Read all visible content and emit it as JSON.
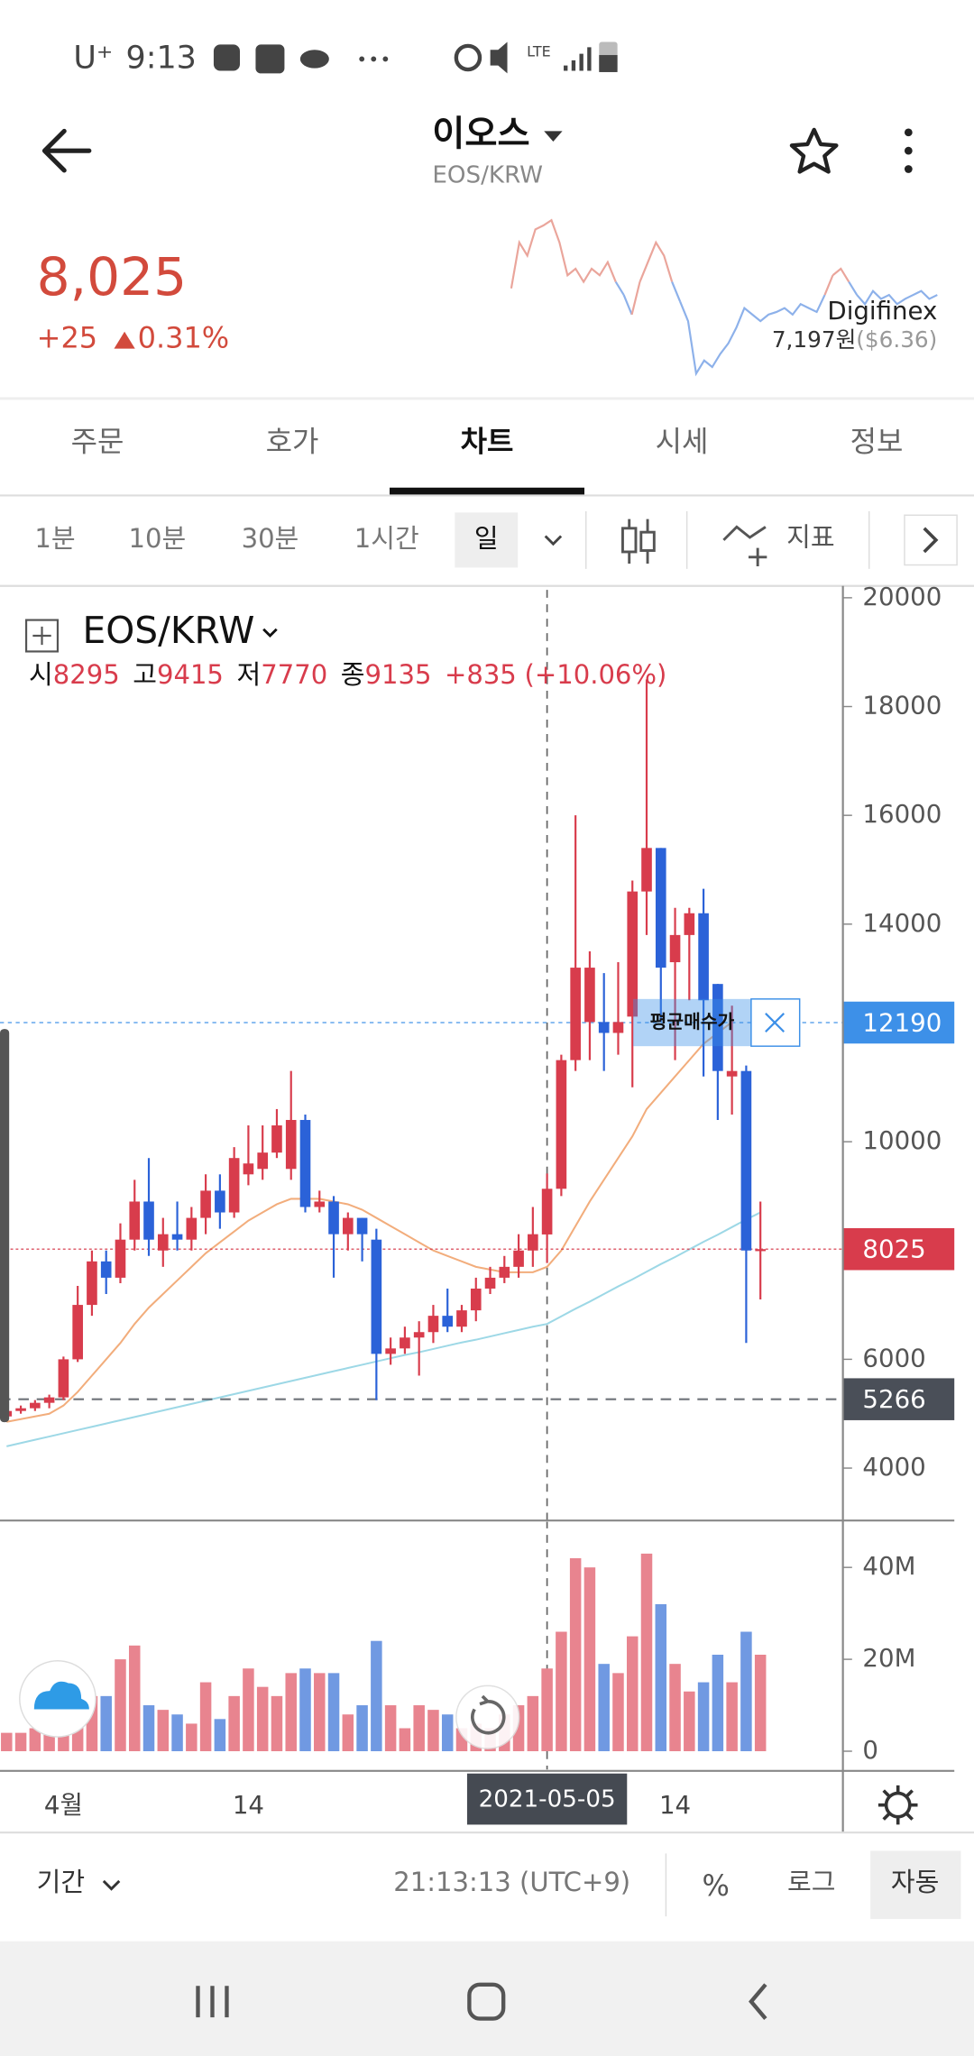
{
  "status_bar": {
    "carrier": "U⁺",
    "time": "9:13",
    "network": "LTE"
  },
  "header": {
    "title": "이오스",
    "subtitle": "EOS/KRW"
  },
  "ticker": {
    "price": "8,025",
    "change": "+25",
    "change_pct": "0.31%"
  },
  "exchange": {
    "name": "Digifinex",
    "price": "7,197원",
    "usd": "($6.36)"
  },
  "sparkline": {
    "values": [
      8050,
      8225,
      8175,
      8275,
      8290,
      8310,
      8225,
      8100,
      8125,
      8075,
      8125,
      8100,
      8150,
      8075,
      8025,
      7950,
      8075,
      8150,
      8225,
      8175,
      8075,
      8000,
      7925,
      7725,
      7775,
      7750,
      7800,
      7840,
      7900,
      7975,
      7950,
      7925,
      7950,
      7960,
      7975,
      7950,
      7990,
      7975,
      7960,
      8025,
      8100,
      8125,
      8075,
      8025,
      7990,
      8040,
      8010,
      8025,
      7990,
      8010,
      8025,
      8040,
      8010,
      8025
    ],
    "ylim": [
      7700,
      8325
    ],
    "up_color": "#eaa59b",
    "down_color": "#8db1ea"
  },
  "tabs": [
    "주문",
    "호가",
    "차트",
    "시세",
    "정보"
  ],
  "active_tab": "차트",
  "intervals": [
    "1분",
    "10분",
    "30분",
    "1시간",
    "일"
  ],
  "active_interval": "일",
  "indicator": "지표",
  "chart_data": {
    "type": "candlestick",
    "title": "EOS/KRW",
    "categories": [
      null,
      null,
      null,
      null,
      "4월",
      null,
      null,
      null,
      null,
      null,
      null,
      null,
      null,
      null,
      null,
      null,
      null,
      "14",
      null,
      null,
      null,
      null,
      null,
      null,
      null,
      null,
      null,
      null,
      null,
      null,
      null,
      null,
      null,
      null,
      null,
      null,
      null,
      null,
      "2021-05-05",
      null,
      null,
      null,
      null,
      null,
      null,
      null,
      null,
      "14",
      null,
      null,
      null,
      null,
      null,
      null
    ],
    "crosshair": "2021-05-05",
    "open": [
      4950,
      5050,
      5100,
      5200,
      5300,
      6000,
      7000,
      7800,
      7500,
      8200,
      8900,
      8000,
      8300,
      8200,
      8600,
      9100,
      8700,
      9400,
      9500,
      9800,
      9500,
      10400,
      8800,
      8900,
      8300,
      8600,
      8200,
      6100,
      6200,
      6400,
      6500,
      6800,
      6600,
      6900,
      7300,
      7500,
      7700,
      8000,
      8295,
      9135,
      11500,
      12200,
      12200,
      12000,
      12300,
      14600,
      15400,
      13300,
      13800,
      14200,
      12900,
      11200,
      11300,
      8000
    ],
    "high": [
      5100,
      5150,
      5250,
      5350,
      6050,
      7350,
      8000,
      8000,
      8500,
      9300,
      9700,
      8600,
      8900,
      8800,
      9400,
      9400,
      9900,
      10300,
      10300,
      10600,
      11300,
      10500,
      9100,
      9000,
      8700,
      8600,
      8400,
      6400,
      6600,
      6700,
      7000,
      7300,
      7000,
      7500,
      7700,
      7900,
      8300,
      8800,
      9415,
      11600,
      16000,
      13500,
      13100,
      13300,
      14800,
      18500,
      15400,
      14300,
      14300,
      14650,
      12900,
      12500,
      11400,
      8900
    ],
    "low": [
      4900,
      5000,
      5050,
      5100,
      5250,
      5950,
      6800,
      7200,
      7400,
      8000,
      7900,
      7700,
      8000,
      8000,
      8300,
      8400,
      8600,
      9200,
      9300,
      9700,
      9300,
      8700,
      8700,
      7500,
      8000,
      7800,
      5250,
      5900,
      6100,
      5700,
      6300,
      6500,
      6500,
      6700,
      7200,
      7400,
      7500,
      7700,
      7770,
      9000,
      11300,
      11500,
      11300,
      11600,
      11000,
      13800,
      12200,
      11500,
      12600,
      11200,
      10400,
      10500,
      6300,
      7100
    ],
    "close": [
      5050,
      5100,
      5200,
      5300,
      6000,
      7000,
      7800,
      7500,
      8200,
      8900,
      8200,
      8300,
      8200,
      8600,
      9100,
      8700,
      9700,
      9600,
      9800,
      10300,
      10400,
      8800,
      8900,
      8300,
      8600,
      8300,
      6100,
      6200,
      6400,
      6500,
      6800,
      6600,
      6900,
      7300,
      7500,
      7700,
      8000,
      8300,
      9135,
      11500,
      13200,
      13200,
      12000,
      12200,
      14600,
      15400,
      13200,
      13800,
      14200,
      12600,
      11300,
      11300,
      8000,
      8025
    ],
    "up_color": "#d83c4c",
    "down_color": "#2b62d8",
    "ohlc_labels": [
      "시",
      "고",
      "저",
      "종"
    ],
    "change": "+835",
    "change_pct": "(+10.06%)",
    "ylim": [
      3036,
      20145
    ],
    "yticks": [
      4000,
      6000,
      8000,
      10000,
      12000,
      14000,
      16000,
      18000,
      20000
    ],
    "moving_averages": [
      {
        "color": "#f2ad7c",
        "values": [
          4850,
          4900,
          4950,
          5000,
          5150,
          5400,
          5700,
          6000,
          6300,
          6650,
          6950,
          7200,
          7450,
          7700,
          7950,
          8150,
          8350,
          8550,
          8700,
          8850,
          8950,
          8950,
          8950,
          8900,
          8850,
          8750,
          8600,
          8450,
          8300,
          8150,
          8000,
          7900,
          7800,
          7700,
          7650,
          7600,
          7600,
          7600,
          7700,
          8000,
          8450,
          8900,
          9300,
          9700,
          10100,
          10600,
          10900,
          11200,
          11500,
          11800,
          12000,
          12200,
          null,
          null
        ]
      },
      {
        "color": "#9dd8e6",
        "values": [
          4400,
          4460,
          4520,
          4580,
          4640,
          4700,
          4760,
          4820,
          4880,
          4940,
          5000,
          5060,
          5120,
          5180,
          5240,
          5300,
          5360,
          5420,
          5480,
          5540,
          5600,
          5660,
          5720,
          5780,
          5840,
          5900,
          5960,
          6020,
          6080,
          6130,
          6190,
          6250,
          6310,
          6360,
          6420,
          6480,
          6540,
          6600,
          6650,
          6790,
          6930,
          7060,
          7200,
          7340,
          7470,
          7610,
          7750,
          7880,
          8020,
          8160,
          8290,
          8430,
          8570,
          8700
        ]
      }
    ],
    "ref_lines": [
      {
        "value": 12190,
        "color": "#3d90e8",
        "annotation": "평균매수가"
      },
      {
        "value": 8025,
        "color": "#d83c4c"
      },
      {
        "value": 5266,
        "color": "#4a4f58"
      }
    ],
    "volume": {
      "values": [
        4,
        4,
        5,
        5,
        8,
        12,
        12,
        12,
        20,
        23,
        10,
        9,
        8,
        6,
        15,
        7,
        12,
        18,
        14,
        12,
        17,
        18,
        17,
        17,
        8,
        10,
        24,
        10,
        5,
        10,
        9,
        8,
        5,
        6,
        5,
        8,
        10,
        12,
        18,
        26,
        42,
        40,
        19,
        17,
        25,
        43,
        32,
        19,
        13,
        15,
        21,
        15,
        26,
        21
      ],
      "ylim": [
        -4,
        50.2
      ],
      "yticks": [
        0,
        {
          "value": 20,
          "label": "20M"
        },
        {
          "value": 40,
          "label": "40M"
        }
      ],
      "up_color": "#e8848f",
      "down_color": "#7099e2"
    }
  },
  "footer": {
    "period": "기간",
    "time": "21:13:13 (UTC+9)",
    "percent": "%",
    "log": "로그",
    "auto": "자동"
  }
}
